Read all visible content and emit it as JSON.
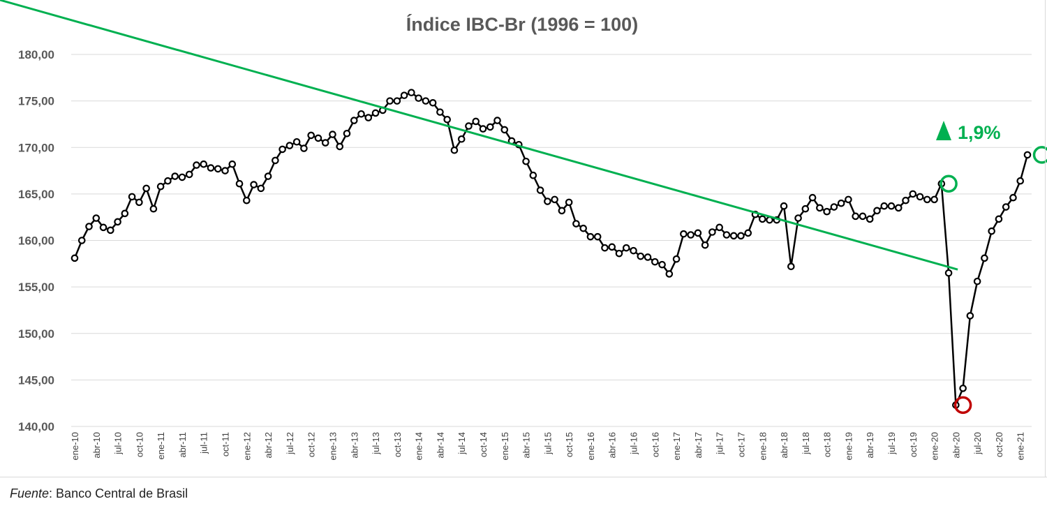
{
  "chart_data": {
    "type": "line",
    "title": "Índice IBC-Br (1996 = 100)",
    "ylim": [
      140,
      180
    ],
    "yticks": [
      "140,00",
      "145,00",
      "150,00",
      "155,00",
      "160,00",
      "165,00",
      "170,00",
      "175,00",
      "180,00"
    ],
    "ytick_values": [
      140,
      145,
      150,
      155,
      160,
      165,
      170,
      175,
      180
    ],
    "grid": true,
    "legend": "none",
    "x_tick_labels": [
      "ene-10",
      "abr-10",
      "jul-10",
      "oct-10",
      "ene-11",
      "abr-11",
      "jul-11",
      "oct-11",
      "ene-12",
      "abr-12",
      "jul-12",
      "oct-12",
      "ene-13",
      "abr-13",
      "jul-13",
      "oct-13",
      "ene-14",
      "abr-14",
      "jul-14",
      "oct-14",
      "ene-15",
      "abr-15",
      "jul-15",
      "oct-15",
      "ene-16",
      "abr-16",
      "jul-16",
      "oct-16",
      "ene-17",
      "abr-17",
      "jul-17",
      "oct-17",
      "ene-18",
      "abr-18",
      "jul-18",
      "oct-18",
      "ene-19",
      "abr-19",
      "jul-19",
      "oct-19",
      "ene-20",
      "abr-20",
      "jul-20",
      "oct-20",
      "ene-21"
    ],
    "series": [
      {
        "color": "#000000",
        "x_start": "ene-10",
        "frequency": "monthly",
        "values": [
          158.1,
          160.0,
          161.5,
          162.4,
          161.4,
          161.1,
          162.0,
          162.9,
          164.7,
          164.1,
          165.6,
          163.4,
          165.8,
          166.4,
          166.9,
          166.8,
          167.1,
          168.1,
          168.2,
          167.8,
          167.7,
          167.5,
          168.2,
          166.1,
          164.3,
          166.0,
          165.6,
          166.9,
          168.6,
          169.8,
          170.2,
          170.6,
          169.9,
          171.3,
          171.0,
          170.5,
          171.4,
          170.1,
          171.5,
          172.9,
          173.6,
          173.2,
          173.7,
          174.0,
          175.0,
          175.0,
          175.6,
          175.9,
          175.3,
          175.0,
          174.8,
          173.8,
          173.0,
          169.7,
          170.9,
          172.3,
          172.8,
          172.0,
          172.2,
          172.9,
          171.9,
          170.7,
          170.3,
          168.5,
          167.0,
          165.4,
          164.2,
          164.4,
          163.2,
          164.1,
          161.8,
          161.3,
          160.4,
          160.4,
          159.2,
          159.3,
          158.6,
          159.2,
          158.9,
          158.3,
          158.2,
          157.7,
          157.4,
          156.4,
          158.0,
          160.7,
          160.6,
          160.8,
          159.5,
          160.9,
          161.4,
          160.6,
          160.5,
          160.5,
          160.8,
          162.8,
          162.3,
          162.2,
          162.2,
          163.7,
          157.2,
          162.4,
          163.4,
          164.6,
          163.5,
          163.1,
          163.6,
          164.0,
          164.4,
          162.6,
          162.6,
          162.3,
          163.2,
          163.7,
          163.7,
          163.5,
          164.3,
          165.0,
          164.7,
          164.4,
          164.4,
          166.1,
          156.5,
          142.3,
          144.1,
          151.9,
          155.6,
          158.1,
          161.0,
          162.3,
          163.6,
          164.6,
          166.4,
          169.2
        ]
      }
    ],
    "highlights": [
      {
        "index": 122,
        "value": 166.1,
        "color": "#00b050"
      },
      {
        "index": 124,
        "value": 142.3,
        "color": "#c00000"
      },
      {
        "index": 135,
        "value": 169.2,
        "color": "#00b050"
      }
    ],
    "annotation": {
      "text": "1,9%",
      "color": "#00b050",
      "from_index": 122,
      "to_index": 135
    }
  },
  "footer": {
    "source_label": "Fuente",
    "source_text": ": Banco Central de Brasil"
  }
}
